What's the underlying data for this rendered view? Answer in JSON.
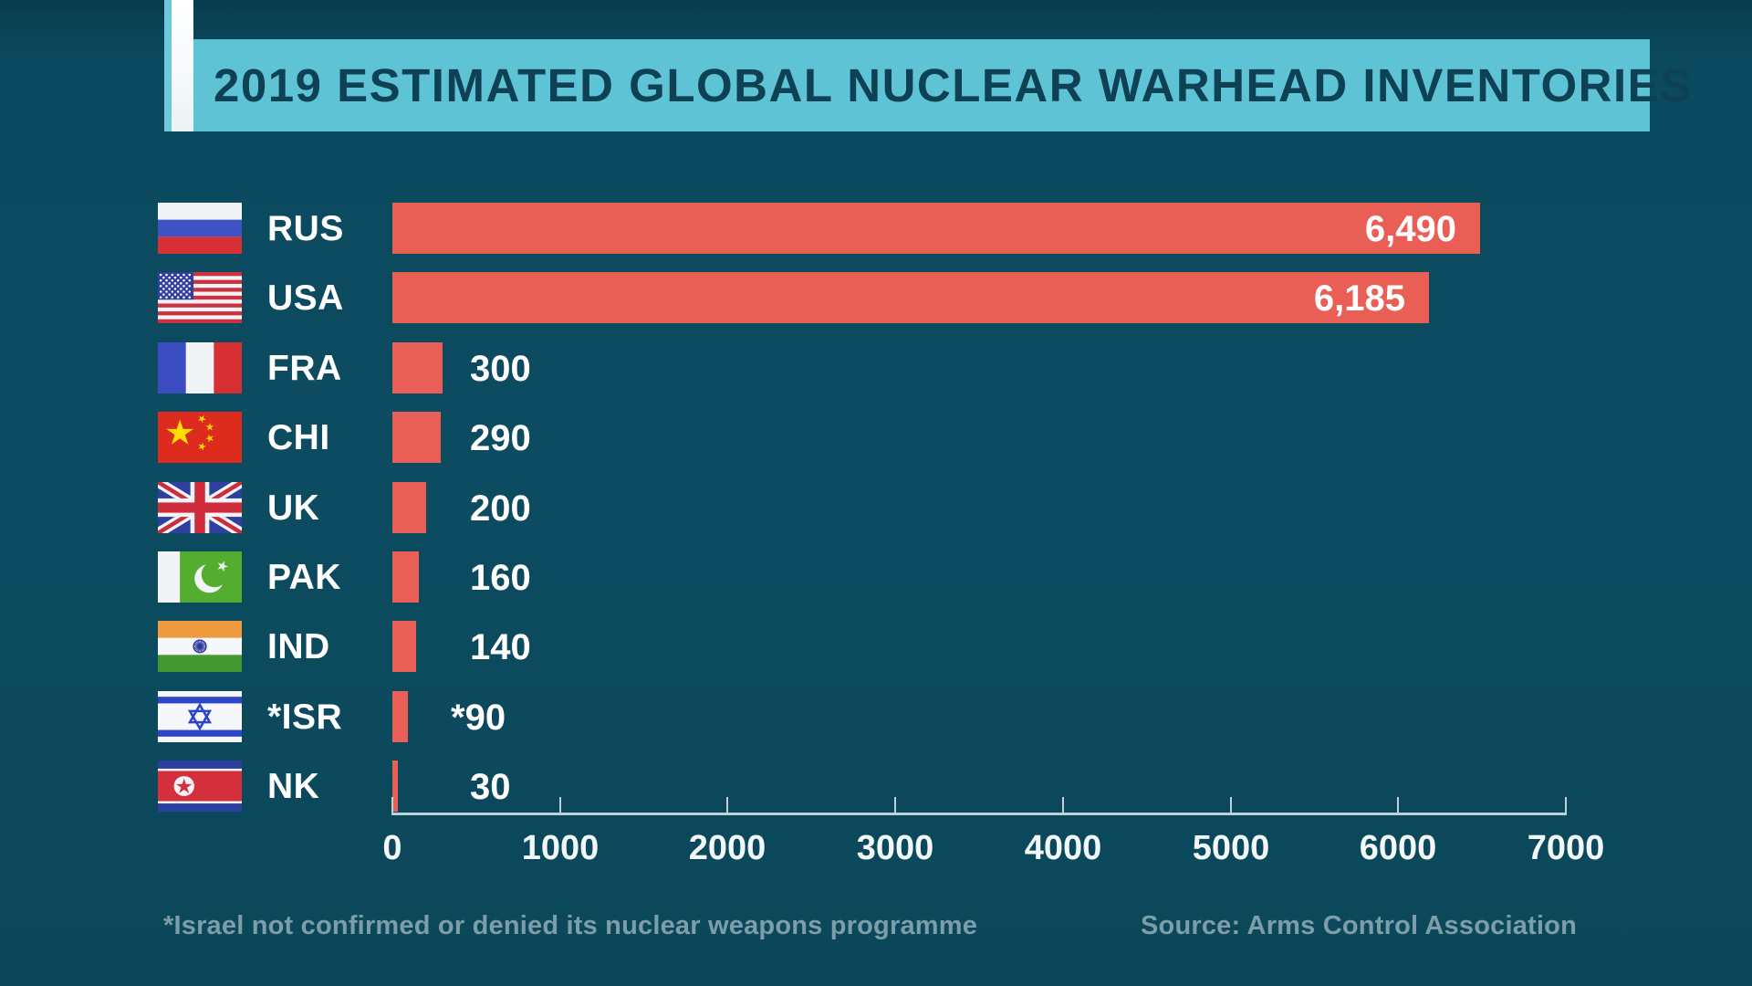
{
  "header": {
    "title": "2019 ESTIMATED GLOBAL NUCLEAR WARHEAD INVENTORIES"
  },
  "chart_data": {
    "type": "bar",
    "orientation": "horizontal",
    "title": "2019 ESTIMATED GLOBAL NUCLEAR WARHEAD INVENTORIES",
    "xlabel": "",
    "ylabel": "",
    "xlim": [
      0,
      7000
    ],
    "x_tick_interval": 1000,
    "x_tick_labels": [
      "0",
      "1000",
      "2000",
      "3000",
      "4000",
      "5000",
      "6000",
      "7000"
    ],
    "grid": false,
    "legend": false,
    "bar_color": "#e95f55",
    "categories": [
      "RUS",
      "USA",
      "FRA",
      "CHI",
      "UK",
      "PAK",
      "IND",
      "*ISR",
      "NK"
    ],
    "values": [
      6490,
      6185,
      300,
      290,
      200,
      160,
      140,
      90,
      30
    ],
    "rows": [
      {
        "label": "RUS",
        "flag": "russia",
        "value": 6490,
        "value_label": "6,490",
        "value_placement": "inside"
      },
      {
        "label": "USA",
        "flag": "usa",
        "value": 6185,
        "value_label": "6,185",
        "value_placement": "inside"
      },
      {
        "label": "FRA",
        "flag": "france",
        "value": 300,
        "value_label": "300",
        "value_placement": "outside"
      },
      {
        "label": "CHI",
        "flag": "china",
        "value": 290,
        "value_label": "290",
        "value_placement": "outside"
      },
      {
        "label": "UK",
        "flag": "uk",
        "value": 200,
        "value_label": "200",
        "value_placement": "outside"
      },
      {
        "label": "PAK",
        "flag": "pakistan",
        "value": 160,
        "value_label": "160",
        "value_placement": "outside"
      },
      {
        "label": "IND",
        "flag": "india",
        "value": 140,
        "value_label": "140",
        "value_placement": "outside"
      },
      {
        "label": "*ISR",
        "flag": "israel",
        "value": 90,
        "value_label": "*90",
        "value_placement": "outside"
      },
      {
        "label": "NK",
        "flag": "north-korea",
        "value": 30,
        "value_label": "30",
        "value_placement": "outside"
      }
    ]
  },
  "footer": {
    "footnote": "*Israel not confirmed or denied its nuclear weapons programme",
    "source": "Source: Arms Control Association"
  },
  "colors": {
    "background": "#0b4a5e",
    "title_band": "#5fc3d6",
    "title_text": "#0d4153",
    "bar": "#e95f55",
    "axis": "#bdd2d8",
    "footnote_text": "#7d9ea9",
    "label_text": "#ffffff"
  }
}
